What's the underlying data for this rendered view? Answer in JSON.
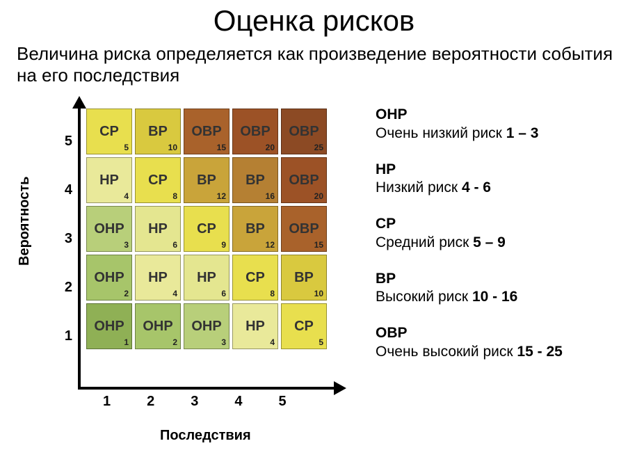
{
  "title": "Оценка рисков",
  "subtitle": "Величина риска определяется как произведение вероятности события на его последствия",
  "axes": {
    "y": "Вероятность",
    "x": "Последствия"
  },
  "y_ticks": [
    "5",
    "4",
    "3",
    "2",
    "1"
  ],
  "x_ticks": [
    "1",
    "2",
    "3",
    "4",
    "5"
  ],
  "matrix": {
    "rows": [
      [
        {
          "label": "СР",
          "num": "5",
          "bg": "#e8df4e"
        },
        {
          "label": "ВР",
          "num": "10",
          "bg": "#d9c93f"
        },
        {
          "label": "ОВР",
          "num": "15",
          "bg": "#a9622b"
        },
        {
          "label": "ОВР",
          "num": "20",
          "bg": "#9c5226"
        },
        {
          "label": "ОВР",
          "num": "25",
          "bg": "#8c4a24"
        }
      ],
      [
        {
          "label": "НР",
          "num": "4",
          "bg": "#e9e99a"
        },
        {
          "label": "СР",
          "num": "8",
          "bg": "#e8df4e"
        },
        {
          "label": "ВР",
          "num": "12",
          "bg": "#c9a43a"
        },
        {
          "label": "ВР",
          "num": "16",
          "bg": "#b58033"
        },
        {
          "label": "ОВР",
          "num": "20",
          "bg": "#9c5226"
        }
      ],
      [
        {
          "label": "ОНР",
          "num": "3",
          "bg": "#b8cf7a"
        },
        {
          "label": "НР",
          "num": "6",
          "bg": "#e4e690"
        },
        {
          "label": "СР",
          "num": "9",
          "bg": "#e8df4e"
        },
        {
          "label": "ВР",
          "num": "12",
          "bg": "#c9a43a"
        },
        {
          "label": "ОВР",
          "num": "15",
          "bg": "#a9622b"
        }
      ],
      [
        {
          "label": "ОНР",
          "num": "2",
          "bg": "#a7c56a"
        },
        {
          "label": "НР",
          "num": "4",
          "bg": "#e9e99a"
        },
        {
          "label": "НР",
          "num": "6",
          "bg": "#e4e690"
        },
        {
          "label": "СР",
          "num": "8",
          "bg": "#e8df4e"
        },
        {
          "label": "ВР",
          "num": "10",
          "bg": "#d9c93f"
        }
      ],
      [
        {
          "label": "ОНР",
          "num": "1",
          "bg": "#8fb055"
        },
        {
          "label": "ОНР",
          "num": "2",
          "bg": "#a7c56a"
        },
        {
          "label": "ОНР",
          "num": "3",
          "bg": "#b8cf7a"
        },
        {
          "label": "НР",
          "num": "4",
          "bg": "#e9e99a"
        },
        {
          "label": "СР",
          "num": "5",
          "bg": "#e8df4e"
        }
      ]
    ]
  },
  "legend": [
    {
      "code": "ОНР",
      "desc": "Очень низкий риск",
      "range": "1 – 3"
    },
    {
      "code": "НР",
      "desc": "Низкий риск",
      "range": "4 - 6"
    },
    {
      "code": "СР",
      "desc": "Средний риск",
      "range": "5 – 9"
    },
    {
      "code": "ВР",
      "desc": "Высокий риск",
      "range": "10 - 16"
    },
    {
      "code": "ОВР",
      "desc": "Очень высокий риск",
      "range": "15 - 25"
    }
  ]
}
